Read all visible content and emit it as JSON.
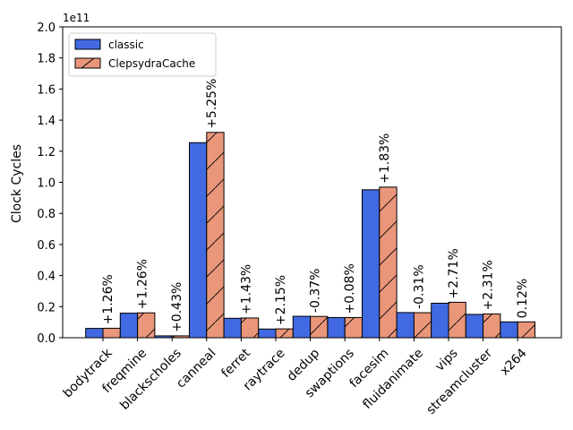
{
  "chart_data": {
    "type": "bar",
    "ylabel": "Clock Cycles",
    "y_offset_label": "1e11",
    "ylim": [
      0,
      2.0
    ],
    "y_ticks": [
      "0.0",
      "0.2",
      "0.4",
      "0.6",
      "0.8",
      "1.0",
      "1.2",
      "1.4",
      "1.6",
      "1.8",
      "2.0"
    ],
    "grid": false,
    "legend_position": "top-left",
    "categories": [
      "bodytrack",
      "freqmine",
      "blackscholes",
      "canneal",
      "ferret",
      "raytrace",
      "dedup",
      "swaptions",
      "facesim",
      "fluidanimate",
      "vips",
      "streamcluster",
      "x264"
    ],
    "series": [
      {
        "name": "classic",
        "color": "#4169e1",
        "hatch": false,
        "values": [
          0.06,
          0.158,
          0.012,
          1.255,
          0.125,
          0.056,
          0.138,
          0.13,
          0.952,
          0.162,
          0.222,
          0.15,
          0.102
        ]
      },
      {
        "name": "ClepsydraCache",
        "color": "#e9967a",
        "hatch": true,
        "values": [
          0.061,
          0.16,
          0.012,
          1.321,
          0.127,
          0.057,
          0.137,
          0.13,
          0.969,
          0.161,
          0.228,
          0.153,
          0.102
        ]
      }
    ],
    "annotations": [
      "+1.26%",
      "+1.26%",
      "+0.43%",
      "+5.25%",
      "+1.43%",
      "+2.15%",
      "-0.37%",
      "+0.08%",
      "+1.83%",
      "-0.31%",
      "+2.71%",
      "+2.31%",
      "0.12%"
    ]
  }
}
